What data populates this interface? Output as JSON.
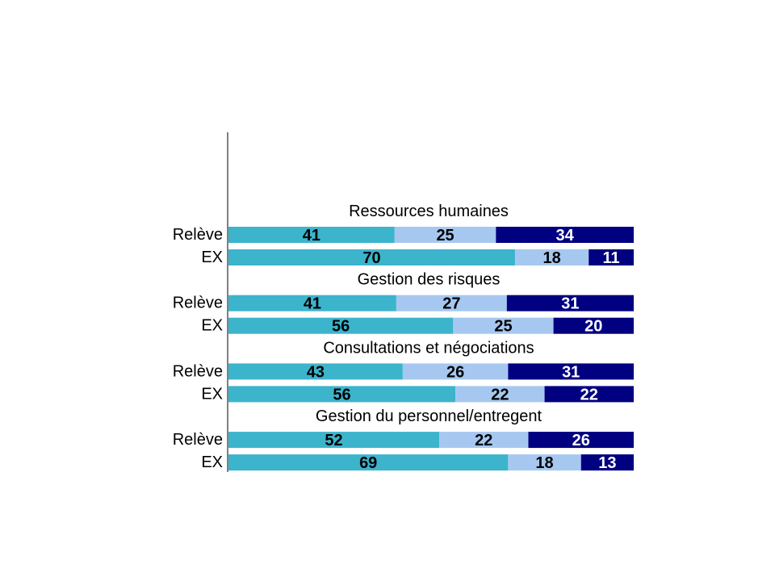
{
  "chart_data": {
    "type": "bar",
    "orientation": "horizontal",
    "stacked": true,
    "normalized_to": 100,
    "colors": [
      "#3cb4cc",
      "#a6c8f0",
      "#000080"
    ],
    "label_colors": [
      "#000000",
      "#000000",
      "#ffffff"
    ],
    "groups": [
      {
        "title": "Ressources humaines",
        "rows": [
          {
            "label": "Relève",
            "values": [
              41,
              25,
              34
            ]
          },
          {
            "label": "EX",
            "values": [
              70,
              18,
              11
            ]
          }
        ]
      },
      {
        "title": "Gestion des risques",
        "rows": [
          {
            "label": "Relève",
            "values": [
              41,
              27,
              31
            ]
          },
          {
            "label": "EX",
            "values": [
              56,
              25,
              20
            ]
          }
        ]
      },
      {
        "title": "Consultations et négociations",
        "rows": [
          {
            "label": "Relève",
            "values": [
              43,
              26,
              31
            ]
          },
          {
            "label": "EX",
            "values": [
              56,
              22,
              22
            ]
          }
        ]
      },
      {
        "title": "Gestion du personnel/entregent",
        "rows": [
          {
            "label": "Relève",
            "values": [
              52,
              22,
              26
            ]
          },
          {
            "label": "EX",
            "values": [
              69,
              18,
              13
            ]
          }
        ]
      }
    ]
  }
}
